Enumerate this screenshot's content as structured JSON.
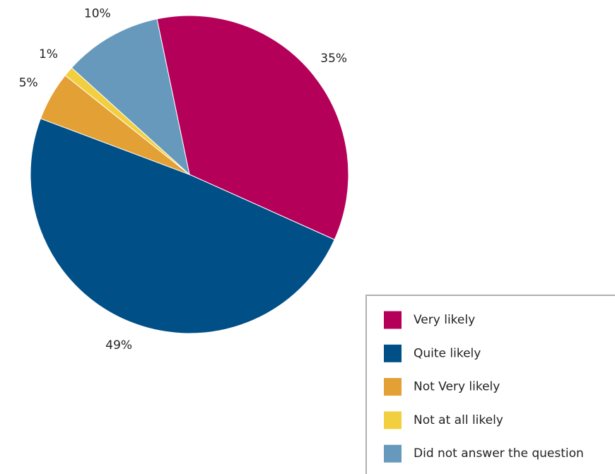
{
  "chart_data": {
    "type": "pie",
    "categories": [
      "Very likely",
      "Quite likely",
      "Not Very likely",
      "Not at all likely",
      "Did not answer the question"
    ],
    "values": [
      35,
      49,
      5,
      1,
      10
    ],
    "value_labels": [
      "35%",
      "49%",
      "5%",
      "1%",
      "10%"
    ],
    "colors": [
      "#b5005a",
      "#004f87",
      "#e3a035",
      "#f2cf3e",
      "#6699bb"
    ],
    "legend": "lower right"
  }
}
